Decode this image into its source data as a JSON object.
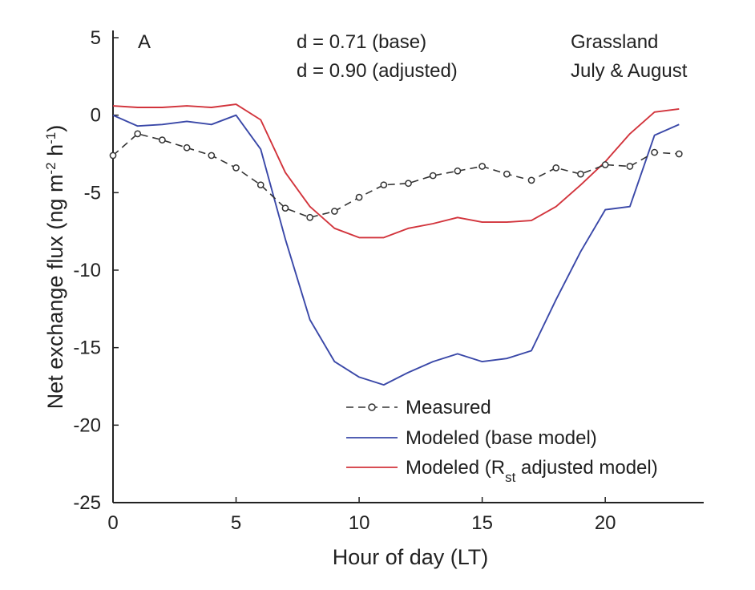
{
  "chart_data": {
    "type": "line",
    "panel_label": "A",
    "xlabel": "Hour of day (LT)",
    "ylabel": {
      "prefix": "Net exchange flux (ng m",
      "sup1": "-2",
      "mid": " h",
      "sup2": "-1",
      "suffix": ")"
    },
    "xlim": [
      0,
      24
    ],
    "ylim": [
      -25,
      5
    ],
    "xticks": [
      0,
      5,
      10,
      15,
      20
    ],
    "yticks": [
      -25,
      -20,
      -15,
      -10,
      -5,
      0,
      5
    ],
    "annotations": {
      "d_base": "d = 0.71 (base)",
      "d_adjusted": "d = 0.90 (adjusted)",
      "site": "Grassland",
      "period": "July & August"
    },
    "x": [
      0,
      1,
      2,
      3,
      4,
      5,
      6,
      7,
      8,
      9,
      10,
      11,
      12,
      13,
      14,
      15,
      16,
      17,
      18,
      19,
      20,
      21,
      22,
      23
    ],
    "series": [
      {
        "name": "Measured",
        "color": "#333333",
        "style": "dashed-circle",
        "values": [
          -2.6,
          -1.2,
          -1.6,
          -2.1,
          -2.6,
          -3.4,
          -4.5,
          -6.0,
          -6.6,
          -6.2,
          -5.3,
          -4.5,
          -4.4,
          -3.9,
          -3.6,
          -3.3,
          -3.8,
          -4.2,
          -3.4,
          -3.8,
          -3.2,
          -3.3,
          -2.4,
          -2.5
        ]
      },
      {
        "name": "Modeled (base model)",
        "color": "#3a48a8",
        "style": "solid",
        "values": [
          0.0,
          -0.7,
          -0.6,
          -0.4,
          -0.6,
          0.0,
          -2.2,
          -8.0,
          -13.2,
          -15.9,
          -16.9,
          -17.4,
          -16.6,
          -15.9,
          -15.4,
          -15.9,
          -15.7,
          -15.2,
          -11.9,
          -8.8,
          -6.1,
          -5.9,
          -1.3,
          -0.6
        ]
      },
      {
        "name": "Modeled (R",
        "name_sub": "st",
        "name_tail": " adjusted model)",
        "color": "#d2343c",
        "style": "solid",
        "values": [
          0.6,
          0.5,
          0.5,
          0.6,
          0.5,
          0.7,
          -0.3,
          -3.7,
          -5.9,
          -7.3,
          -7.9,
          -7.9,
          -7.3,
          -7.0,
          -6.6,
          -6.9,
          -6.9,
          -6.8,
          -5.9,
          -4.5,
          -3.0,
          -1.2,
          0.2,
          0.4
        ]
      }
    ]
  }
}
